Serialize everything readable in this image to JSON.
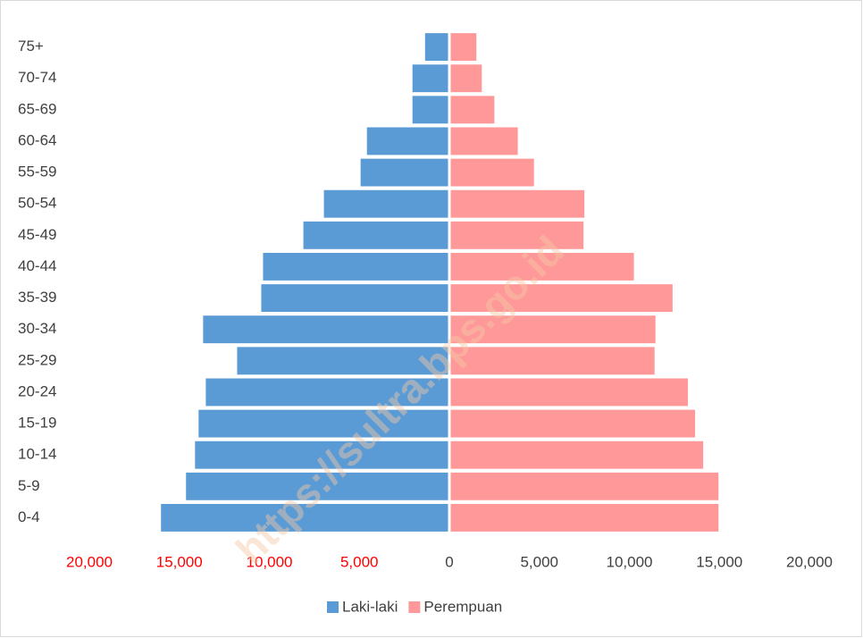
{
  "chart_data": {
    "type": "pyramid",
    "categories": [
      "0-4",
      "5-9",
      "10-14",
      "15-19",
      "20-24",
      "25-29",
      "30-34",
      "35-39",
      "40-44",
      "45-49",
      "50-54",
      "55-59",
      "60-64",
      "65-69",
      "70-74",
      "75+"
    ],
    "series": [
      {
        "name": "Laki-laki",
        "color": "#5b9bd5",
        "values": [
          -16020,
          -14630,
          -14130,
          -13930,
          -13530,
          -11790,
          -13680,
          -10450,
          -10350,
          -8110,
          -6970,
          -4930,
          -4580,
          -2050,
          -2050,
          -1350
        ]
      },
      {
        "name": "Perempuan",
        "color": "#ff9999",
        "values": [
          14950,
          14950,
          14100,
          13650,
          13250,
          11400,
          11450,
          12400,
          10250,
          7450,
          7500,
          4700,
          3800,
          2500,
          1800,
          1500
        ]
      }
    ],
    "xlim": [
      -20000,
      20000
    ],
    "xticks": [
      {
        "value": -20000,
        "label": "20,000"
      },
      {
        "value": -15000,
        "label": "15,000"
      },
      {
        "value": -10000,
        "label": "10,000"
      },
      {
        "value": -5000,
        "label": "5,000"
      },
      0,
      {
        "value": 5000,
        "label": "5,000"
      },
      {
        "value": 10000,
        "label": "10,000"
      },
      {
        "value": 15000,
        "label": "15,000"
      },
      {
        "value": 20000,
        "label": "20,000"
      }
    ],
    "negative_tick_color": "#ff0000",
    "legend": "bottom",
    "watermark": "https://sultra.bps.go.id"
  }
}
